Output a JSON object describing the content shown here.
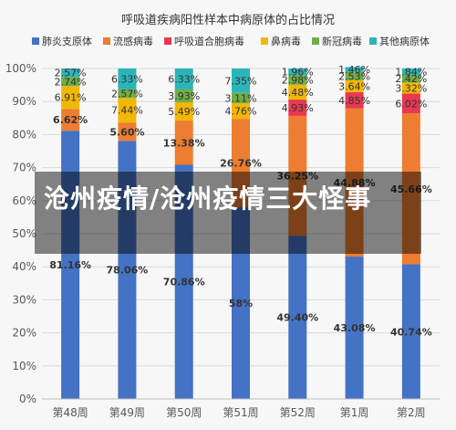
{
  "overlay_title": "沧州疫情/沧州疫情三大怪事",
  "chart_data": {
    "type": "bar",
    "stacked": true,
    "title": "呼吸道疾病阳性样本中病原体的占比情况",
    "xlabel": "",
    "ylabel": "",
    "ylim": [
      0,
      100
    ],
    "y_ticks": [
      "0%",
      "10%",
      "20%",
      "30%",
      "40%",
      "50%",
      "60%",
      "70%",
      "80%",
      "90%",
      "100%"
    ],
    "categories": [
      "第48周",
      "第49周",
      "第50周",
      "第51周",
      "第52周",
      "第1周",
      "第2周"
    ],
    "legend_position": "top",
    "grid": true,
    "series": [
      {
        "name": "肺炎支原体",
        "color": "#4472C4",
        "values": [
          81.16,
          78.06,
          70.86,
          58,
          49.4,
          43.08,
          40.74
        ],
        "labels": [
          "81.16%",
          "78.06%",
          "70.86%",
          "58%",
          "49.40%",
          "43.08%",
          "40.74%"
        ]
      },
      {
        "name": "流感病毒",
        "color": "#ED7D31",
        "values": [
          6.62,
          5.6,
          13.38,
          26.76,
          36.25,
          44.88,
          45.66
        ],
        "labels": [
          "6.62%",
          "5.60%",
          "13.38%",
          "26.76%",
          "36.25%",
          "44.88%",
          "45.66%"
        ]
      },
      {
        "name": "呼吸道合胞病毒",
        "color": "#E8384F",
        "values": [
          0,
          0,
          0,
          0,
          4.93,
          4.85,
          6.02
        ],
        "labels": [
          "",
          "",
          "",
          "",
          "4.93%",
          "4.85%",
          "6.02%"
        ]
      },
      {
        "name": "鼻病毒",
        "color": "#F2B705",
        "values": [
          6.91,
          7.44,
          5.49,
          4.76,
          4.48,
          3.64,
          3.32
        ],
        "labels": [
          "6.91%",
          "7.44%",
          "5.49%",
          "4.76%",
          "4.48%",
          "3.64%",
          "3.32%"
        ]
      },
      {
        "name": "新冠病毒",
        "color": "#70AD47",
        "values": [
          2.74,
          2.57,
          3.93,
          3.11,
          2.98,
          2.53,
          2.42
        ],
        "labels": [
          "2.74%",
          "2.57%",
          "3.93%",
          "3.11%",
          "2.98%",
          "2.53%",
          "2.42%"
        ]
      },
      {
        "name": "其他病原体",
        "color": "#2BB5B8",
        "values": [
          2.57,
          6.33,
          6.33,
          7.35,
          1.96,
          1.46,
          1.84
        ],
        "labels": [
          "2.57%",
          "6.33%",
          "6.33%",
          "7.35%",
          "1.96%",
          "1.46%",
          "1.84%"
        ]
      }
    ]
  }
}
